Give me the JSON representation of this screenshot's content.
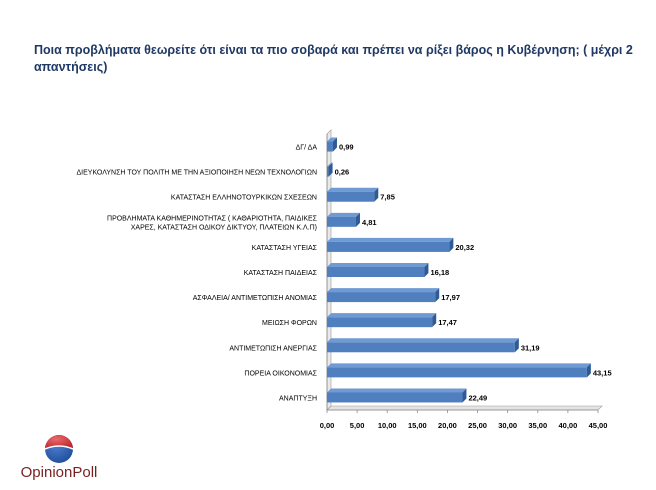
{
  "title": "Ποια προβλήματα θεωρείτε ότι είναι τα πιο σοβαρά και πρέπει να ρίξει βάρος η Κυβέρνηση; ( μέχρι 2 απαντήσεις)",
  "logo": {
    "text": "OpinionPoll",
    "colors": {
      "red": "#c0272d",
      "blue": "#1f4e9a",
      "text": "#7a1f1f"
    }
  },
  "chart_data": {
    "type": "bar",
    "orientation": "horizontal",
    "title": "Ποια προβλήματα θεωρείτε ότι είναι τα πιο σοβαρά και πρέπει να ρίξει βάρος η Κυβέρνηση; ( μέχρι 2 απαντήσεις)",
    "categories": [
      [
        "ΔΓ/ ΔΑ"
      ],
      [
        "ΔΙΕΥΚΟΛΥΝΣΗ ΤΟΥ ΠΟΛΙΤΗ ΜΕ ΤΗΝ ΑΞΙΟΠΟΙΗΣΗ ΝΕΩΝ ΤΕΧΝΟΛΟΓΙΩΝ"
      ],
      [
        "ΚΑΤΑΣΤΑΣΗ ΕΛΛΗΝΟΤΟΥΡΚΙΚΩΝ ΣΧΕΣΕΩΝ"
      ],
      [
        "ΠΡΟΒΛΗΜΑΤΑ ΚΑΘΗΜΕΡΙΝΟΤΗΤΑΣ ( ΚΑΘΑΡΙΟΤΗΤΑ, ΠΑΙΔΙΚΕΣ",
        "ΧΑΡΕΣ, ΚΑΤΑΣΤΑΣΗ ΟΔΙΚΟΥ ΔΙΚΤΥΟΥ, ΠΛΑΤΕΙΩΝ Κ.Λ.Π)"
      ],
      [
        "ΚΑΤΑΣΤΑΣΗ ΥΓΕΙΑΣ"
      ],
      [
        "ΚΑΤΑΣΤΑΣΗ ΠΑΙΔΕΙΑΣ"
      ],
      [
        "ΑΣΦΑΛΕΙΑ/ ΑΝΤΙΜΕΤΩΠΙΣΗ ΑΝΟΜΙΑΣ"
      ],
      [
        "ΜΕΙΩΣΗ ΦΟΡΩΝ"
      ],
      [
        "ΑΝΤΙΜΕΤΩΠΙΣΗ ΑΝΕΡΓΙΑΣ"
      ],
      [
        "ΠΟΡΕΙΑ ΟΙΚΟΝΟΜΙΑΣ"
      ],
      [
        "ΑΝΑΠΤΥΞΗ"
      ]
    ],
    "values": [
      0.99,
      0.26,
      7.85,
      4.81,
      20.32,
      16.18,
      17.97,
      17.47,
      31.19,
      43.15,
      22.49
    ],
    "data_labels": [
      "0,99",
      "0,26",
      "7,85",
      "4,81",
      "20,32",
      "16,18",
      "17,97",
      "17,47",
      "31,19",
      "43,15",
      "22,49"
    ],
    "xticks": [
      "0,00",
      "5,00",
      "10,00",
      "15,00",
      "20,00",
      "25,00",
      "30,00",
      "35,00",
      "40,00",
      "45,00"
    ],
    "xlim": [
      0,
      45
    ],
    "xlabel": "",
    "ylabel": "",
    "grid": false,
    "legend": "none",
    "colors": {
      "bar": "#4f7fbf",
      "bar_top": "#6f9ad3",
      "bar_side": "#2f5a94"
    }
  }
}
